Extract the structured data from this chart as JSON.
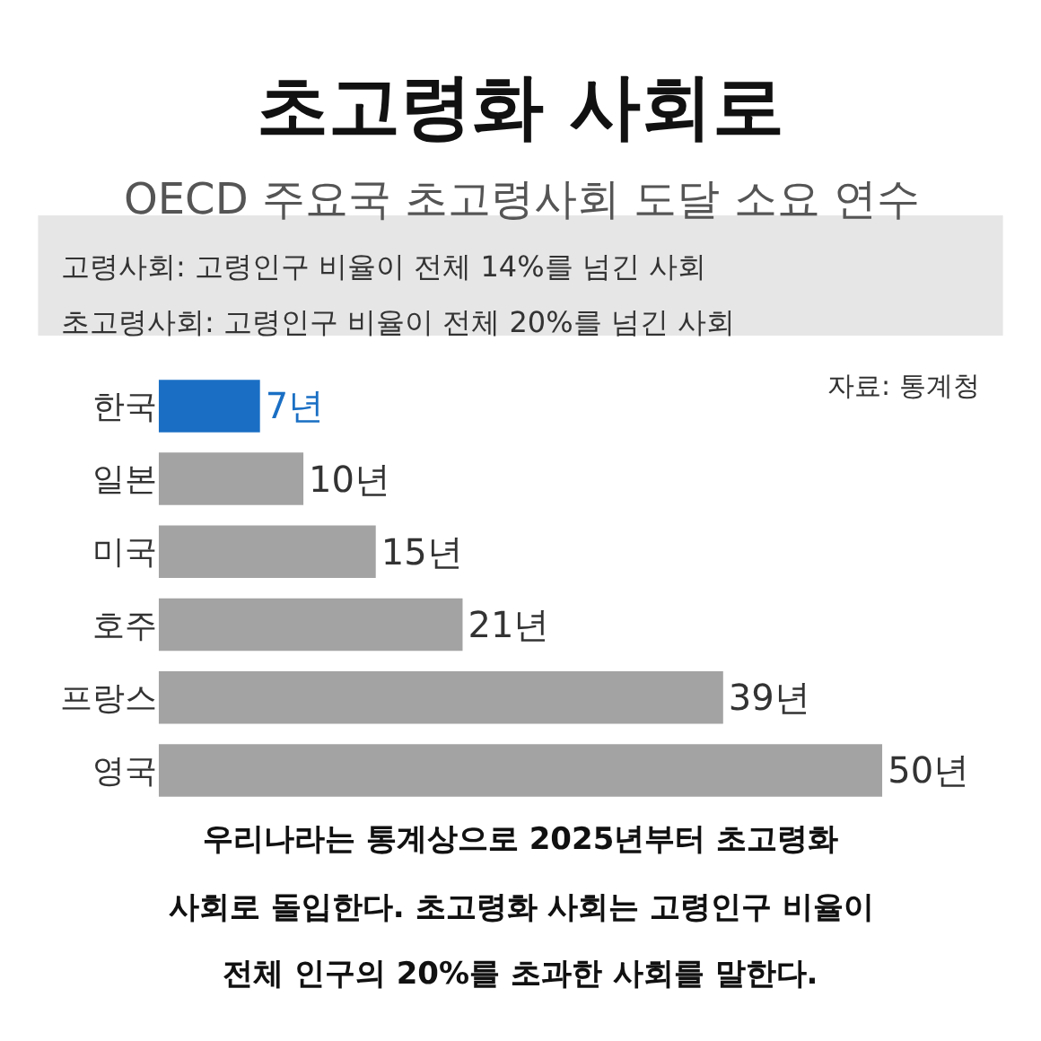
{
  "chart_data": {
    "type": "bar",
    "orientation": "horizontal",
    "title": "초고령화 사회로",
    "subtitle": "OECD 주요국 초고령사회 도달 소요 연수",
    "categories": [
      "한국",
      "일본",
      "미국",
      "호주",
      "프랑스",
      "영국"
    ],
    "values": [
      7,
      10,
      15,
      21,
      39,
      50
    ],
    "value_labels": [
      "7년",
      "10년",
      "15년",
      "21년",
      "39년",
      "50년"
    ],
    "colors": [
      "#1a6fc4",
      "#a3a3a3",
      "#a3a3a3",
      "#a3a3a3",
      "#a3a3a3",
      "#a3a3a3"
    ],
    "annotations": [
      "고령사회: 고령인구 비율이 전체 14%를 넘긴 사회",
      "초고령사회: 고령인구 비율이 전체 20%를 넘긴 사회",
      "자료: 통계청",
      "우리나라는 통계상으로 2025년부터 초고령화",
      "사회로 돌입한다. 초고령화 사회는 고령인구 비율이",
      "전체 인구의 20%를 초과한 사회를 말한다."
    ]
  }
}
